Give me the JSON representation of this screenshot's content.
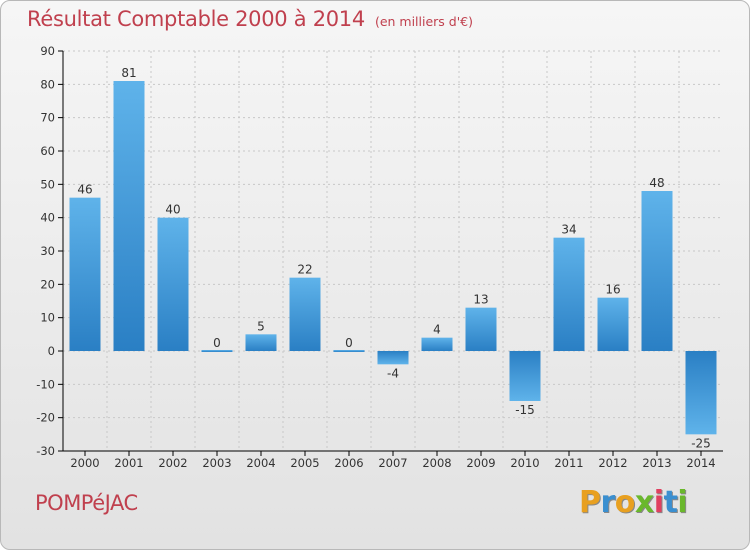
{
  "title": "Résultat Comptable 2000 à 2014",
  "unit": "(en milliers d'€)",
  "commune": "POMPéJAC",
  "brand": {
    "text": "Proxiti",
    "letters": [
      "P",
      "r",
      "o",
      "x",
      "i",
      "t",
      "i"
    ],
    "colors": [
      "#e8a020",
      "#3a8fd0",
      "#e8a020",
      "#6ab82c",
      "#e04060",
      "#3a8fd0",
      "#6ab82c"
    ]
  },
  "colors": {
    "title": "#c0404e",
    "bar_light": "#5fb3ea",
    "bar_dark": "#2a7fc4",
    "axis": "#000000",
    "grid": "#c8c8c8"
  },
  "chart_data": {
    "type": "bar",
    "title": "Résultat Comptable 2000 à 2014",
    "xlabel": "",
    "ylabel": "(en milliers d'€)",
    "categories": [
      "2000",
      "2001",
      "2002",
      "2003",
      "2004",
      "2005",
      "2006",
      "2007",
      "2008",
      "2009",
      "2010",
      "2011",
      "2012",
      "2013",
      "2014"
    ],
    "values": [
      46,
      81,
      40,
      0,
      5,
      22,
      0,
      -4,
      4,
      13,
      -15,
      34,
      16,
      48,
      -25
    ],
    "labels": [
      "46",
      "81",
      "40",
      "0",
      "5",
      "22",
      "0",
      "-4",
      "4",
      "13",
      "-15",
      "34",
      "16",
      "48",
      "-25"
    ],
    "ylim": [
      -30,
      90
    ],
    "yticks": [
      -30,
      -20,
      -10,
      0,
      10,
      20,
      30,
      40,
      50,
      60,
      70,
      80,
      90
    ],
    "grid": true,
    "legend": "none"
  }
}
